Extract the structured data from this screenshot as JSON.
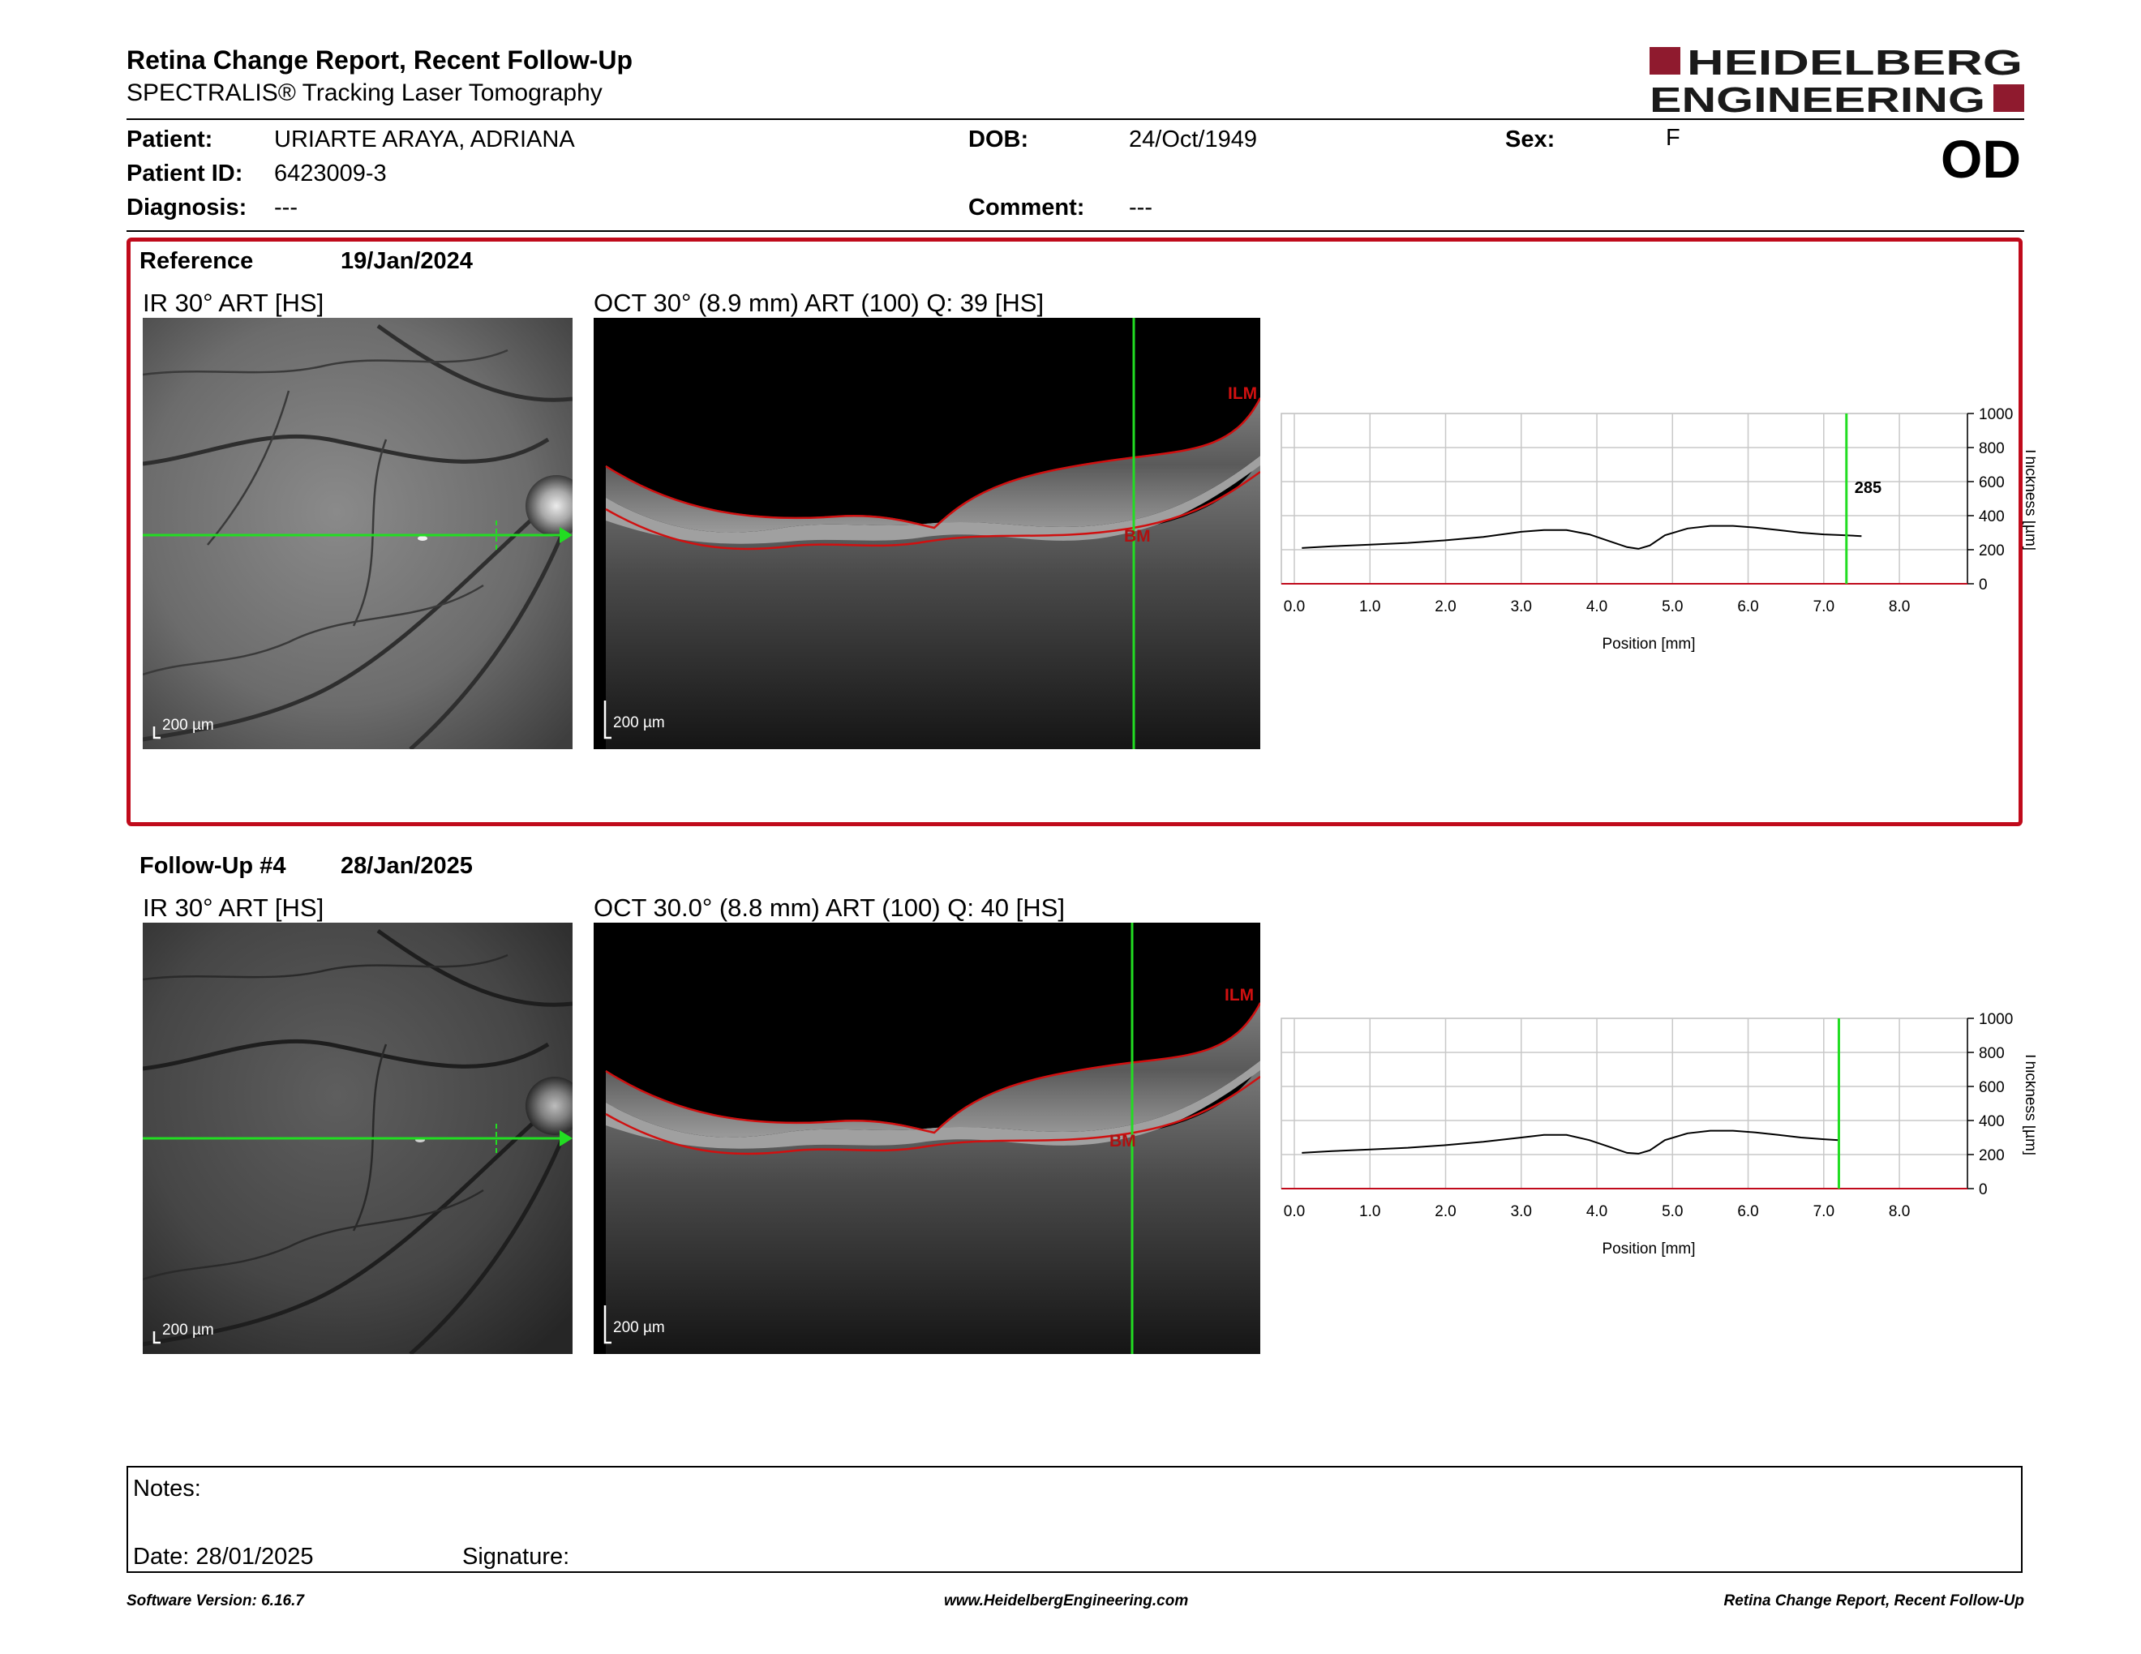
{
  "report": {
    "title": "Retina Change Report, Recent Follow-Up",
    "subtitle": "SPECTRALIS® Tracking Laser Tomography",
    "logo_line1": "HEIDELBERG",
    "logo_line2": "ENGINEERING"
  },
  "colors": {
    "brand": "#8f1a2e",
    "accent": "#c00a1b",
    "scan_line": "#22dd22",
    "segmentation": "#d01010"
  },
  "patient": {
    "patient_label": "Patient:",
    "patient_value": "URIARTE ARAYA, ADRIANA",
    "id_label": "Patient ID:",
    "id_value": "6423009-3",
    "diagnosis_label": "Diagnosis:",
    "diagnosis_value": "---",
    "dob_label": "DOB:",
    "dob_value": "24/Oct/1949",
    "comment_label": "Comment:",
    "comment_value": "---",
    "sex_label": "Sex:",
    "sex_value": "F",
    "eye": "OD"
  },
  "reference": {
    "label": "Reference",
    "date": "19/Jan/2024",
    "ir_title": "IR 30° ART [HS]",
    "oct_title": "OCT 30° (8.9 mm) ART (100) Q: 39 [HS]",
    "scale": "200 µm",
    "ilm": "ILM",
    "bm": "BM"
  },
  "followup": {
    "label": "Follow-Up #4",
    "date": "28/Jan/2025",
    "ir_title": "IR 30° ART [HS]",
    "oct_title": "OCT 30.0° (8.8 mm) ART (100) Q: 40 [HS]",
    "scale": "200 µm",
    "ilm": "ILM",
    "bm": "BM"
  },
  "chart_data": [
    {
      "type": "line",
      "xlabel": "Position [mm]",
      "ylabel": "Thickness [µm]",
      "xlim": [
        0,
        8.9
      ],
      "ylim": [
        0,
        1000
      ],
      "x_ticks": [
        "0.0",
        "1.0",
        "2.0",
        "3.0",
        "4.0",
        "5.0",
        "6.0",
        "7.0",
        "8.0"
      ],
      "y_ticks": [
        "0",
        "200",
        "400",
        "600",
        "800",
        "1000"
      ],
      "grid": true,
      "cursor_x": 7.3,
      "cursor_label": "285",
      "x": [
        0.1,
        0.5,
        1.0,
        1.5,
        2.0,
        2.5,
        3.0,
        3.3,
        3.6,
        3.9,
        4.2,
        4.4,
        4.55,
        4.7,
        4.9,
        5.2,
        5.5,
        5.8,
        6.1,
        6.4,
        6.7,
        7.0,
        7.3,
        7.5
      ],
      "values": [
        210,
        220,
        230,
        240,
        255,
        275,
        305,
        315,
        315,
        290,
        245,
        215,
        205,
        225,
        285,
        325,
        340,
        340,
        330,
        315,
        300,
        290,
        285,
        280
      ]
    },
    {
      "type": "line",
      "xlabel": "Position [mm]",
      "ylabel": "Thickness [µm]",
      "xlim": [
        0,
        8.9
      ],
      "ylim": [
        0,
        1000
      ],
      "x_ticks": [
        "0.0",
        "1.0",
        "2.0",
        "3.0",
        "4.0",
        "5.0",
        "6.0",
        "7.0",
        "8.0"
      ],
      "y_ticks": [
        "0",
        "200",
        "400",
        "600",
        "800",
        "1000"
      ],
      "grid": true,
      "cursor_x": 7.2,
      "x": [
        0.1,
        0.5,
        1.0,
        1.5,
        2.0,
        2.5,
        3.0,
        3.3,
        3.6,
        3.9,
        4.2,
        4.4,
        4.55,
        4.7,
        4.9,
        5.2,
        5.5,
        5.8,
        6.1,
        6.4,
        6.7,
        7.0,
        7.2
      ],
      "values": [
        210,
        220,
        230,
        240,
        255,
        275,
        300,
        315,
        315,
        285,
        240,
        210,
        205,
        225,
        285,
        325,
        340,
        340,
        330,
        315,
        300,
        290,
        285
      ]
    }
  ],
  "notes": {
    "label": "Notes:",
    "date": "Date: 28/01/2025",
    "signature": "Signature:"
  },
  "footer": {
    "version": "Software Version: 6.16.7",
    "url": "www.HeidelbergEngineering.com",
    "report_name": "Retina Change Report, Recent Follow-Up"
  }
}
